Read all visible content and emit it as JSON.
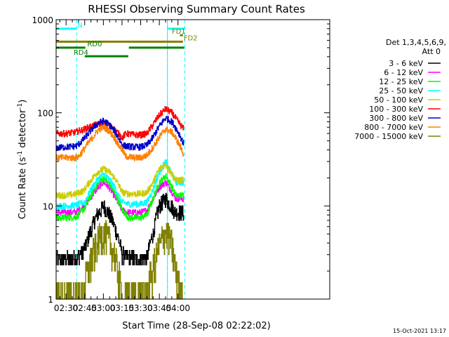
{
  "chart_data": {
    "type": "line",
    "title": "RHESSI Observing Summary Count Rates",
    "xlabel": "Start Time (28-Sep-08 02:22:02)",
    "ylabel": "Count Rate (s",
    "ylabel_sup1": "-1",
    "ylabel_mid": " detector",
    "ylabel_sup2": "-1",
    "ylabel_end": ")",
    "yscale": "log",
    "ylim": [
      1,
      1000
    ],
    "xlim_min": [
      22.0,
      242.0
    ],
    "x_unit": "minutes after 02:00 UT",
    "x_ticks": [
      {
        "label": "02:30",
        "value": 30
      },
      {
        "label": "02:45",
        "value": 45
      },
      {
        "label": "03:00",
        "value": 60
      },
      {
        "label": "03:15",
        "value": 75
      },
      {
        "label": "03:30",
        "value": 90
      },
      {
        "label": "03:45",
        "value": 105
      },
      {
        "label": "04:00",
        "value": 120
      }
    ],
    "y_ticks": [
      {
        "label": "1",
        "value": 1
      },
      {
        "label": "10",
        "value": 10
      },
      {
        "label": "100",
        "value": 100
      },
      {
        "label": "1000",
        "value": 1000
      }
    ],
    "legend_header": [
      "Det 1,3,4,5,6,9,",
      "Att 0"
    ],
    "legend_position": "right",
    "night_boundaries": [
      38.5,
      111.5
    ],
    "sun_intervals": [
      {
        "start": 22,
        "end": 38.5
      },
      {
        "start": 111.5,
        "end": 125.5
      }
    ],
    "series": [
      {
        "name": "3 - 6 keV",
        "color": "#000000",
        "x": [
          22,
          30,
          37,
          39,
          45,
          50,
          55,
          60,
          65,
          70,
          73,
          75,
          80,
          90,
          95,
          100,
          105,
          110,
          112,
          118
        ],
        "y": [
          2.7,
          2.7,
          2.7,
          2.8,
          3.5,
          5.5,
          8.0,
          10.0,
          8.0,
          5.5,
          4.0,
          3.0,
          2.8,
          2.7,
          2.8,
          5.0,
          10.0,
          12.0,
          11.0,
          8.5
        ]
      },
      {
        "name": "6 - 12 keV",
        "color": "#ff00ff",
        "x": [
          22,
          30,
          38,
          45,
          50,
          55,
          60,
          65,
          70,
          73,
          75,
          80,
          90,
          95,
          100,
          105,
          110,
          112,
          118
        ],
        "y": [
          8.5,
          8.5,
          8.6,
          10.0,
          12.5,
          15.5,
          18.0,
          15.5,
          12.0,
          10.0,
          9.0,
          8.5,
          8.5,
          9.0,
          12.0,
          16.0,
          18.0,
          16.5,
          12.0
        ]
      },
      {
        "name": "12 - 25 keV",
        "color": "#00ff00",
        "x": [
          22,
          30,
          38,
          45,
          50,
          55,
          60,
          65,
          70,
          73,
          75,
          80,
          90,
          95,
          100,
          105,
          110,
          112,
          118
        ],
        "y": [
          7.5,
          7.5,
          7.6,
          9.5,
          13.0,
          17.0,
          20.0,
          17.0,
          13.0,
          10.5,
          9.0,
          7.5,
          7.5,
          8.0,
          12.0,
          18.0,
          21.0,
          19.0,
          13.0
        ]
      },
      {
        "name": "25 - 50 keV",
        "color": "#00ffff",
        "x": [
          22,
          30,
          38,
          45,
          50,
          55,
          60,
          65,
          70,
          73,
          75,
          80,
          90,
          95,
          100,
          105,
          110,
          112,
          118
        ],
        "y": [
          10.0,
          10.0,
          10.2,
          11.0,
          15.0,
          19.0,
          22.0,
          19.0,
          15.0,
          12.0,
          11.0,
          10.5,
          10.5,
          11.0,
          15.0,
          23.0,
          30.0,
          26.0,
          18.0
        ]
      },
      {
        "name": "50 - 100 keV",
        "color": "#cccc00",
        "x": [
          22,
          30,
          38,
          40,
          44,
          50,
          55,
          60,
          65,
          70,
          73,
          75,
          80,
          90,
          95,
          100,
          105,
          110,
          112,
          118
        ],
        "y": [
          13.0,
          13.0,
          13.5,
          14.0,
          14.5,
          19.0,
          23.0,
          25.0,
          23.0,
          19.0,
          16.0,
          14.0,
          13.5,
          13.5,
          14.0,
          18.0,
          25.0,
          28.0,
          25.0,
          19.0
        ]
      },
      {
        "name": "100 - 300 keV",
        "color": "#ff0000",
        "x": [
          22,
          30,
          38,
          40,
          44,
          48,
          52,
          56,
          60,
          64,
          68,
          72,
          75,
          78,
          85,
          90,
          95,
          100,
          105,
          110,
          115,
          120,
          124
        ],
        "y": [
          60,
          60,
          62,
          64,
          66,
          70,
          73,
          76,
          77,
          74,
          68,
          60,
          54,
          60,
          58,
          58,
          60,
          75,
          95,
          110,
          100,
          80,
          68
        ]
      },
      {
        "name": "300 - 800 keV",
        "color": "#0000cc",
        "x": [
          22,
          30,
          38,
          40,
          44,
          48,
          52,
          56,
          60,
          64,
          68,
          72,
          75,
          78,
          85,
          90,
          95,
          100,
          105,
          110,
          115,
          120,
          124
        ],
        "y": [
          42,
          43,
          44,
          46,
          52,
          60,
          70,
          78,
          82,
          76,
          66,
          54,
          45,
          44,
          43,
          43,
          45,
          55,
          72,
          88,
          80,
          62,
          48
        ]
      },
      {
        "name": "800 - 7000 keV",
        "color": "#ff8000",
        "x": [
          22,
          30,
          38,
          40,
          44,
          48,
          52,
          56,
          60,
          64,
          68,
          72,
          75,
          78,
          85,
          90,
          95,
          100,
          105,
          110,
          115,
          120,
          124
        ],
        "y": [
          33,
          33,
          33,
          34,
          40,
          48,
          56,
          66,
          70,
          65,
          56,
          45,
          40,
          34,
          33,
          33,
          35,
          43,
          55,
          67,
          62,
          48,
          37
        ]
      },
      {
        "name": "7000 - 15000 keV",
        "color": "#808000",
        "x": [
          22,
          38,
          40,
          44,
          48,
          52,
          56,
          60,
          64,
          68,
          72,
          75,
          78,
          85,
          90,
          95,
          100,
          105,
          110,
          114,
          118,
          122
        ],
        "y": [
          1,
          1,
          1.0,
          1.3,
          2.0,
          3.0,
          4.2,
          5.0,
          4.2,
          3.0,
          1.8,
          1.0,
          1.0,
          1.0,
          1.0,
          1.2,
          2.0,
          3.5,
          5.0,
          4.0,
          2.0,
          1.0
        ]
      }
    ],
    "flag_bars": [
      {
        "label": "N",
        "color": "#00ffff",
        "x_start": 22,
        "x_end": 38.5,
        "y": 800,
        "label_x": 39.0
      },
      {
        "label": "N",
        "color": "#00ffff",
        "x_start": 111.5,
        "x_end": 125.5,
        "y": 800,
        "label_x": null
      },
      {
        "label": "FD1",
        "color": "#808000",
        "x_start": 121.5,
        "x_end": 124.0,
        "y": 680,
        "label_x": 115.0
      },
      {
        "label": "FD2",
        "color": "#808000",
        "x_start": 22,
        "x_end": 124.0,
        "y": 580,
        "label_x": 124.5
      },
      {
        "label": "RD0",
        "color": "#008000",
        "x_start": 22,
        "x_end": 45.5,
        "y": 500,
        "label_x": 47.0
      },
      {
        "label": "RD0",
        "color": "#008000",
        "x_start": 80.5,
        "x_end": 125.0,
        "y": 500,
        "label_x": null
      },
      {
        "label": "RD4",
        "color": "#008000",
        "x_start": 45.0,
        "x_end": 80.0,
        "y": 405,
        "label_x": 36.0
      }
    ],
    "timestamp": "15-Oct-2021 13:17"
  }
}
